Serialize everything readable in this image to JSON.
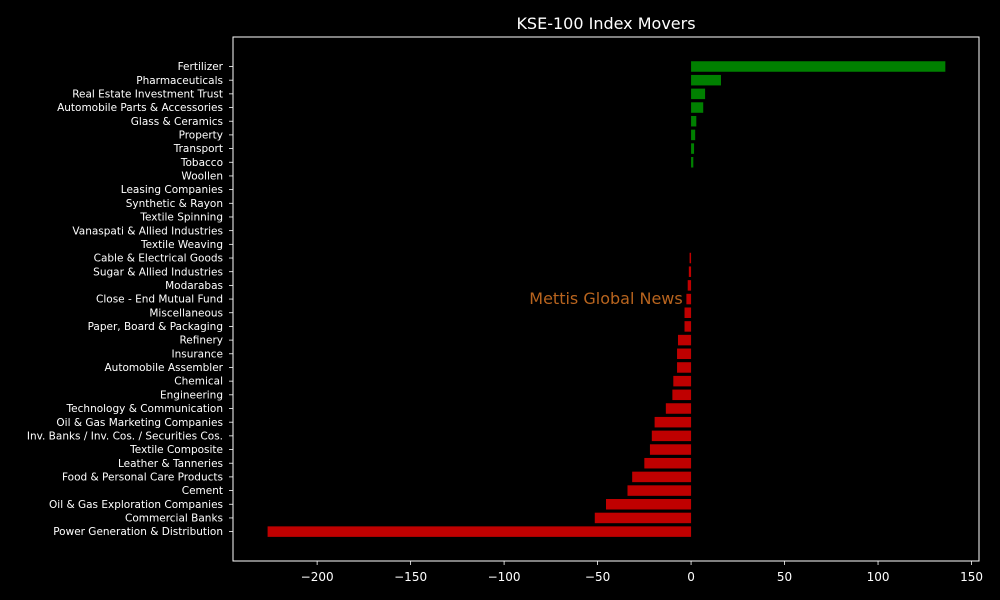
{
  "chart_data": {
    "type": "bar",
    "orientation": "horizontal",
    "title": "KSE-100 Index Movers",
    "watermark": "Mettis Global News",
    "xlim": [
      -245,
      154
    ],
    "xticks": [
      -200,
      -150,
      -100,
      -50,
      0,
      50,
      100,
      150
    ],
    "xtick_labels": [
      "−200",
      "−150",
      "−100",
      "−50",
      "0",
      "50",
      "100",
      "150"
    ],
    "grid": false,
    "colors": {
      "positive": "#008000",
      "negative": "#bf0000",
      "background": "#000000",
      "foreground": "#ffffff",
      "watermark": "#b8641e"
    },
    "categories": [
      "Fertilizer",
      "Pharmaceuticals",
      "Real Estate Investment Trust",
      "Automobile Parts & Accessories",
      "Glass & Ceramics",
      "Property",
      "Transport",
      "Tobacco",
      "Woollen",
      "Leasing Companies",
      "Synthetic & Rayon",
      "Textile Spinning",
      "Vanaspati & Allied Industries",
      "Textile Weaving",
      "Cable & Electrical Goods",
      "Sugar & Allied Industries",
      "Modarabas",
      "Close - End Mutual Fund",
      "Miscellaneous",
      "Paper, Board & Packaging",
      "Refinery",
      "Insurance",
      "Automobile Assembler",
      "Chemical",
      "Engineering",
      "Technology & Communication",
      "Oil & Gas Marketing Companies",
      "Inv. Banks / Inv. Cos. / Securities Cos.",
      "Textile Composite",
      "Leather & Tanneries",
      "Food & Personal Care Products",
      "Cement",
      "Oil & Gas Exploration Companies",
      "Commercial Banks",
      "Power Generation & Distribution"
    ],
    "values": [
      136,
      16,
      7.5,
      6.5,
      2.8,
      2.2,
      1.6,
      1.2,
      0,
      0,
      0,
      0,
      0,
      0,
      -0.8,
      -1.2,
      -1.8,
      -2.5,
      -3.5,
      -3.5,
      -7,
      -7.5,
      -7.5,
      -9.5,
      -10,
      -13.5,
      -19.5,
      -21,
      -22,
      -25,
      -31.5,
      -34,
      -45.5,
      -51.5,
      -226.5
    ]
  }
}
